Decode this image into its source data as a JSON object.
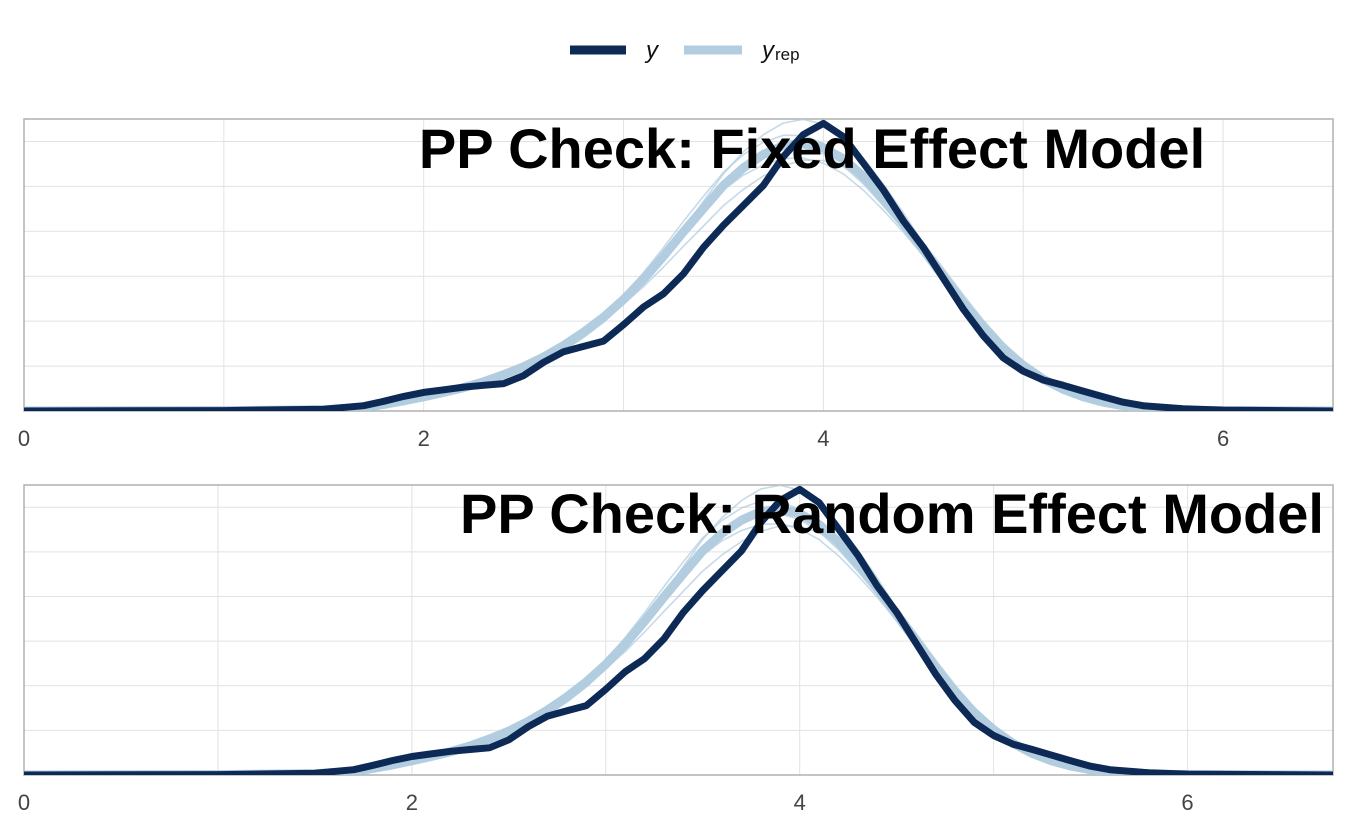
{
  "colors": {
    "y": "#0c2a55",
    "yrep": "#b3cde0",
    "grid": "#e2e2e2",
    "frame": "#b0b0b0"
  },
  "legend": {
    "position": "top-center",
    "y_label": "y",
    "yrep_label": "y",
    "yrep_sub": "rep"
  },
  "chart_data": [
    {
      "type": "line",
      "title": "PP Check: Fixed Effect Model",
      "xlabel": "",
      "ylabel": "",
      "xlim": [
        0,
        6.55
      ],
      "ylim": [
        0,
        0.66
      ],
      "x_ticks": [
        "0",
        "2",
        "4",
        "6"
      ],
      "grid": true,
      "series": [
        {
          "name": "y",
          "x": [
            0,
            1.0,
            1.5,
            1.7,
            1.8,
            1.9,
            2.0,
            2.1,
            2.2,
            2.3,
            2.4,
            2.5,
            2.6,
            2.7,
            2.8,
            2.9,
            3.0,
            3.1,
            3.2,
            3.3,
            3.4,
            3.5,
            3.6,
            3.7,
            3.8,
            3.9,
            4.0,
            4.1,
            4.2,
            4.3,
            4.4,
            4.5,
            4.6,
            4.7,
            4.8,
            4.9,
            5.0,
            5.1,
            5.2,
            5.3,
            5.4,
            5.5,
            5.6,
            5.8,
            6.0,
            6.55
          ],
          "y": [
            0,
            0.001,
            0.004,
            0.012,
            0.022,
            0.033,
            0.042,
            0.048,
            0.054,
            0.058,
            0.062,
            0.08,
            0.11,
            0.134,
            0.146,
            0.158,
            0.195,
            0.235,
            0.265,
            0.31,
            0.37,
            0.42,
            0.465,
            0.51,
            0.575,
            0.625,
            0.65,
            0.62,
            0.56,
            0.5,
            0.43,
            0.37,
            0.3,
            0.23,
            0.17,
            0.12,
            0.09,
            0.07,
            0.058,
            0.045,
            0.032,
            0.02,
            0.012,
            0.005,
            0.002,
            0
          ]
        },
        {
          "name": "y_rep",
          "x": [
            0,
            1.0,
            1.5,
            1.7,
            1.8,
            1.9,
            2.0,
            2.1,
            2.2,
            2.3,
            2.4,
            2.5,
            2.6,
            2.7,
            2.8,
            2.9,
            3.0,
            3.1,
            3.2,
            3.3,
            3.4,
            3.5,
            3.6,
            3.7,
            3.8,
            3.9,
            4.0,
            4.1,
            4.2,
            4.3,
            4.4,
            4.5,
            4.6,
            4.7,
            4.8,
            4.9,
            5.0,
            5.1,
            5.2,
            5.3,
            5.4,
            5.5,
            5.6,
            5.8,
            6.0,
            6.55
          ],
          "y": [
            0,
            0.001,
            0.003,
            0.008,
            0.015,
            0.023,
            0.032,
            0.042,
            0.053,
            0.066,
            0.082,
            0.1,
            0.122,
            0.148,
            0.178,
            0.212,
            0.252,
            0.298,
            0.35,
            0.405,
            0.458,
            0.51,
            0.55,
            0.58,
            0.6,
            0.605,
            0.595,
            0.57,
            0.53,
            0.48,
            0.425,
            0.365,
            0.305,
            0.245,
            0.19,
            0.142,
            0.103,
            0.072,
            0.049,
            0.032,
            0.02,
            0.012,
            0.007,
            0.002,
            0.001,
            0
          ]
        }
      ]
    },
    {
      "type": "line",
      "title": "PP Check: Random Effect Model",
      "xlabel": "",
      "ylabel": "",
      "xlim": [
        0,
        6.75
      ],
      "ylim": [
        0,
        0.66
      ],
      "x_ticks": [
        "0",
        "2",
        "4",
        "6"
      ],
      "grid": true,
      "series": [
        {
          "name": "y",
          "x": [
            0,
            1.0,
            1.5,
            1.7,
            1.8,
            1.9,
            2.0,
            2.1,
            2.2,
            2.3,
            2.4,
            2.5,
            2.6,
            2.7,
            2.8,
            2.9,
            3.0,
            3.1,
            3.2,
            3.3,
            3.4,
            3.5,
            3.6,
            3.7,
            3.8,
            3.9,
            4.0,
            4.1,
            4.2,
            4.3,
            4.4,
            4.5,
            4.6,
            4.7,
            4.8,
            4.9,
            5.0,
            5.1,
            5.2,
            5.3,
            5.4,
            5.5,
            5.6,
            5.8,
            6.0,
            6.75
          ],
          "y": [
            0,
            0.001,
            0.004,
            0.012,
            0.022,
            0.033,
            0.042,
            0.048,
            0.054,
            0.058,
            0.062,
            0.08,
            0.11,
            0.134,
            0.146,
            0.158,
            0.195,
            0.235,
            0.265,
            0.31,
            0.37,
            0.42,
            0.465,
            0.51,
            0.575,
            0.625,
            0.65,
            0.62,
            0.56,
            0.5,
            0.43,
            0.37,
            0.3,
            0.23,
            0.17,
            0.12,
            0.09,
            0.07,
            0.058,
            0.045,
            0.032,
            0.02,
            0.012,
            0.005,
            0.002,
            0
          ]
        },
        {
          "name": "y_rep",
          "x": [
            0,
            1.0,
            1.5,
            1.7,
            1.8,
            1.9,
            2.0,
            2.1,
            2.2,
            2.3,
            2.4,
            2.5,
            2.6,
            2.7,
            2.8,
            2.9,
            3.0,
            3.1,
            3.2,
            3.3,
            3.4,
            3.5,
            3.6,
            3.7,
            3.8,
            3.9,
            4.0,
            4.1,
            4.2,
            4.3,
            4.4,
            4.5,
            4.6,
            4.7,
            4.8,
            4.9,
            5.0,
            5.1,
            5.2,
            5.3,
            5.4,
            5.5,
            5.6,
            5.8,
            6.0,
            6.75
          ],
          "y": [
            0,
            0.001,
            0.003,
            0.008,
            0.015,
            0.023,
            0.032,
            0.042,
            0.053,
            0.066,
            0.082,
            0.1,
            0.122,
            0.148,
            0.178,
            0.212,
            0.252,
            0.298,
            0.35,
            0.405,
            0.458,
            0.51,
            0.55,
            0.58,
            0.6,
            0.605,
            0.595,
            0.57,
            0.53,
            0.48,
            0.425,
            0.365,
            0.305,
            0.245,
            0.19,
            0.142,
            0.103,
            0.072,
            0.049,
            0.032,
            0.02,
            0.012,
            0.007,
            0.002,
            0.001,
            0
          ]
        }
      ]
    }
  ]
}
